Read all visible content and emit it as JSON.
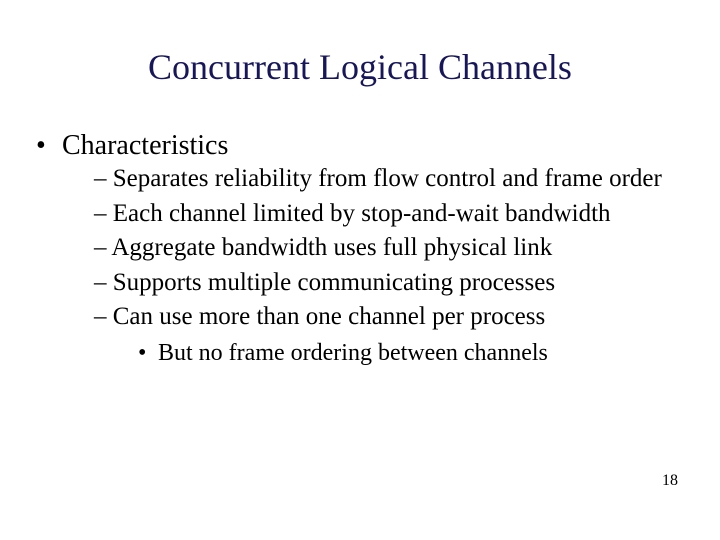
{
  "title": {
    "text": "Concurrent Logical Channels",
    "color": "#17165b"
  },
  "level1": {
    "text": "Characteristics"
  },
  "level2": [
    "– Separates reliability from flow control and frame order",
    "– Each channel limited by stop-and-wait bandwidth",
    "– Aggregate bandwidth uses full physical link",
    "– Supports multiple communicating processes",
    "– Can use more than one channel per process"
  ],
  "level3": [
    "But no frame ordering between channels"
  ],
  "page_number": "18",
  "colors": {
    "background": "#ffffff",
    "body_text": "#000000"
  }
}
